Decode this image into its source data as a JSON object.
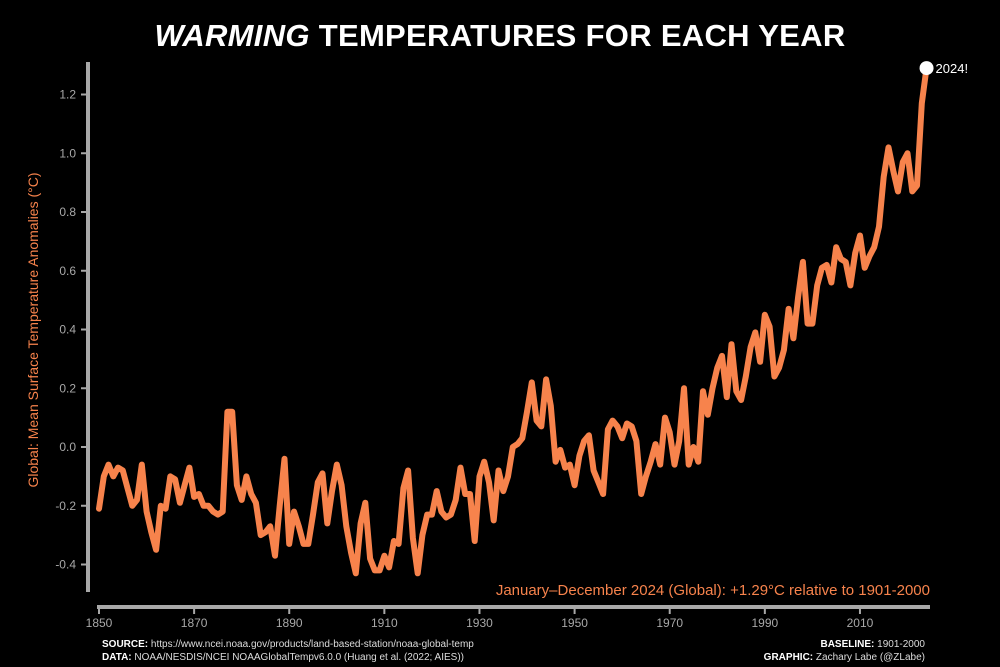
{
  "chart_data": {
    "type": "line",
    "title_emphasis": "WARMING",
    "title_rest": " TEMPERATURES FOR EACH YEAR",
    "ylabel": "Global: Mean Surface Temperature Anomalies (°C)",
    "xlabel": "",
    "xlim": [
      1850,
      2024
    ],
    "ylim": [
      -0.5,
      1.3
    ],
    "xticks": [
      1850,
      1870,
      1890,
      1910,
      1930,
      1950,
      1970,
      1990,
      2010
    ],
    "yticks": [
      "-0.4",
      "-0.2",
      "0.0",
      "0.2",
      "0.4",
      "0.6",
      "0.8",
      "1.0",
      "1.2"
    ],
    "grid": false,
    "line_color": "#f7834c",
    "highlight_color": "#ffffff",
    "highlight_label": "2024!",
    "annotation": "January–December 2024 (Global): +1.29°C relative to 1901-2000",
    "start_year": 1850,
    "values": [
      -0.21,
      -0.1,
      -0.06,
      -0.1,
      -0.07,
      -0.08,
      -0.14,
      -0.2,
      -0.18,
      -0.06,
      -0.22,
      -0.29,
      -0.35,
      -0.2,
      -0.21,
      -0.1,
      -0.11,
      -0.19,
      -0.13,
      -0.07,
      -0.17,
      -0.16,
      -0.2,
      -0.2,
      -0.22,
      -0.23,
      -0.22,
      0.12,
      0.12,
      -0.13,
      -0.18,
      -0.1,
      -0.16,
      -0.19,
      -0.3,
      -0.29,
      -0.27,
      -0.37,
      -0.2,
      -0.04,
      -0.33,
      -0.22,
      -0.27,
      -0.33,
      -0.33,
      -0.23,
      -0.12,
      -0.09,
      -0.26,
      -0.15,
      -0.06,
      -0.13,
      -0.27,
      -0.36,
      -0.43,
      -0.26,
      -0.19,
      -0.38,
      -0.42,
      -0.42,
      -0.37,
      -0.41,
      -0.32,
      -0.33,
      -0.14,
      -0.08,
      -0.31,
      -0.43,
      -0.3,
      -0.23,
      -0.23,
      -0.15,
      -0.22,
      -0.24,
      -0.23,
      -0.18,
      -0.07,
      -0.16,
      -0.16,
      -0.32,
      -0.1,
      -0.05,
      -0.12,
      -0.25,
      -0.08,
      -0.15,
      -0.1,
      0.0,
      0.01,
      0.03,
      0.12,
      0.22,
      0.09,
      0.07,
      0.23,
      0.14,
      -0.05,
      -0.01,
      -0.07,
      -0.06,
      -0.13,
      -0.03,
      0.02,
      0.04,
      -0.08,
      -0.12,
      -0.16,
      0.06,
      0.09,
      0.07,
      0.03,
      0.08,
      0.07,
      0.02,
      -0.16,
      -0.1,
      -0.05,
      0.01,
      -0.06,
      0.1,
      0.05,
      -0.06,
      0.02,
      0.2,
      -0.06,
      0.0,
      -0.05,
      0.19,
      0.11,
      0.2,
      0.27,
      0.31,
      0.17,
      0.35,
      0.19,
      0.16,
      0.24,
      0.34,
      0.39,
      0.29,
      0.45,
      0.41,
      0.24,
      0.27,
      0.33,
      0.47,
      0.37,
      0.51,
      0.63,
      0.42,
      0.42,
      0.55,
      0.61,
      0.62,
      0.56,
      0.68,
      0.64,
      0.63,
      0.55,
      0.66,
      0.72,
      0.61,
      0.65,
      0.68,
      0.75,
      0.92,
      1.02,
      0.94,
      0.87,
      0.97,
      1.0,
      0.87,
      0.89,
      1.17,
      1.29
    ]
  },
  "footer": {
    "source_label": "SOURCE:",
    "source_text": " https://www.ncei.noaa.gov/products/land-based-station/noaa-global-temp",
    "data_label": "DATA:",
    "data_text": " NOAA/NESDIS/NCEI NOAAGlobalTempv6.0.0 (Huang et al. (2022; AIES))",
    "baseline_label": "BASELINE:",
    "baseline_text": " 1901-2000",
    "graphic_label": "GRAPHIC:",
    "graphic_text": " Zachary Labe (@ZLabe)"
  }
}
